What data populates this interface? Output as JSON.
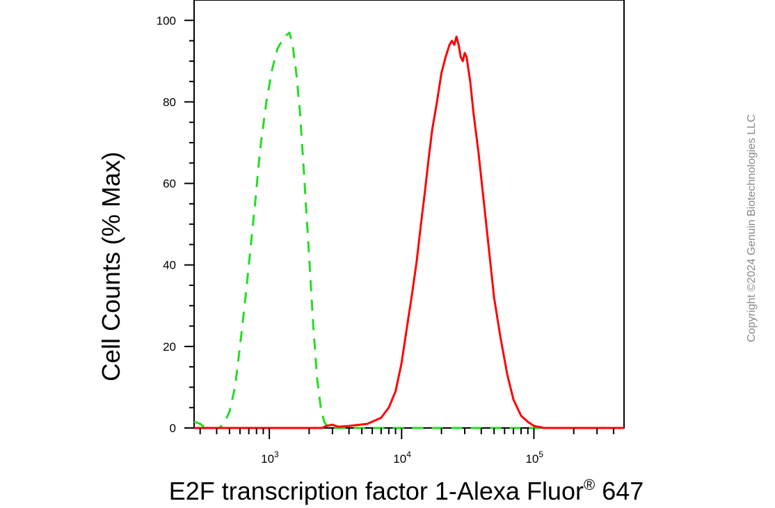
{
  "chart_data": {
    "type": "line",
    "title": "",
    "ylabel": "Cell Counts (% Max)",
    "xlabel": {
      "main": "E2F transcription factor 1-Alexa Fluor",
      "superscript": "®",
      "suffix": " 647"
    },
    "xscale": "log",
    "xlim": [
      270,
      480000
    ],
    "ylim": [
      0,
      105
    ],
    "grid": false,
    "legend": "none",
    "y_ticks": [
      "0",
      "20",
      "40",
      "60",
      "80",
      "100"
    ],
    "x_ticks": [
      {
        "base": "10",
        "exp": "3"
      },
      {
        "base": "10",
        "exp": "4"
      },
      {
        "base": "10",
        "exp": "5"
      }
    ],
    "series": [
      {
        "color": "#22dd22",
        "dash": "dashed",
        "points": [
          [
            270,
            1.5
          ],
          [
            300,
            1.0
          ],
          [
            330,
            0
          ],
          [
            420,
            0
          ],
          [
            460,
            1.5
          ],
          [
            500,
            4
          ],
          [
            550,
            10
          ],
          [
            600,
            20
          ],
          [
            650,
            30
          ],
          [
            700,
            40
          ],
          [
            780,
            55
          ],
          [
            850,
            68
          ],
          [
            950,
            80
          ],
          [
            1050,
            88
          ],
          [
            1150,
            93
          ],
          [
            1300,
            96
          ],
          [
            1420,
            97
          ],
          [
            1500,
            94
          ],
          [
            1600,
            87
          ],
          [
            1700,
            78
          ],
          [
            1850,
            60
          ],
          [
            2000,
            42
          ],
          [
            2150,
            25
          ],
          [
            2300,
            12
          ],
          [
            2450,
            5
          ],
          [
            2600,
            1.5
          ],
          [
            2800,
            0
          ],
          [
            4000,
            0
          ],
          [
            10000,
            0
          ],
          [
            100000,
            0
          ],
          [
            480000,
            0
          ]
        ]
      },
      {
        "color": "#ff0000",
        "dash": "solid",
        "points": [
          [
            270,
            0
          ],
          [
            2500,
            0
          ],
          [
            2700,
            0.5
          ],
          [
            3000,
            0.8
          ],
          [
            3300,
            0.3
          ],
          [
            4000,
            0.5
          ],
          [
            5500,
            1.0
          ],
          [
            7000,
            2.5
          ],
          [
            8000,
            5
          ],
          [
            9000,
            9
          ],
          [
            10000,
            16
          ],
          [
            11000,
            25
          ],
          [
            12000,
            33
          ],
          [
            13000,
            41
          ],
          [
            14000,
            50
          ],
          [
            15000,
            58
          ],
          [
            16000,
            66
          ],
          [
            17000,
            73
          ],
          [
            18500,
            80
          ],
          [
            20000,
            87
          ],
          [
            21500,
            91
          ],
          [
            23000,
            94
          ],
          [
            24000,
            95
          ],
          [
            25000,
            94
          ],
          [
            26000,
            96
          ],
          [
            27000,
            94
          ],
          [
            28000,
            91
          ],
          [
            29000,
            90
          ],
          [
            30000,
            92
          ],
          [
            31000,
            91
          ],
          [
            33000,
            85
          ],
          [
            35000,
            77
          ],
          [
            38000,
            68
          ],
          [
            42000,
            55
          ],
          [
            46000,
            43
          ],
          [
            50000,
            32
          ],
          [
            56000,
            22
          ],
          [
            63000,
            13
          ],
          [
            70000,
            7
          ],
          [
            80000,
            3
          ],
          [
            90000,
            1.5
          ],
          [
            100000,
            0.5
          ],
          [
            120000,
            0
          ],
          [
            480000,
            0
          ]
        ]
      }
    ]
  },
  "copyright": "Copyright ©2024 Genuin Biotechnologies LLC"
}
